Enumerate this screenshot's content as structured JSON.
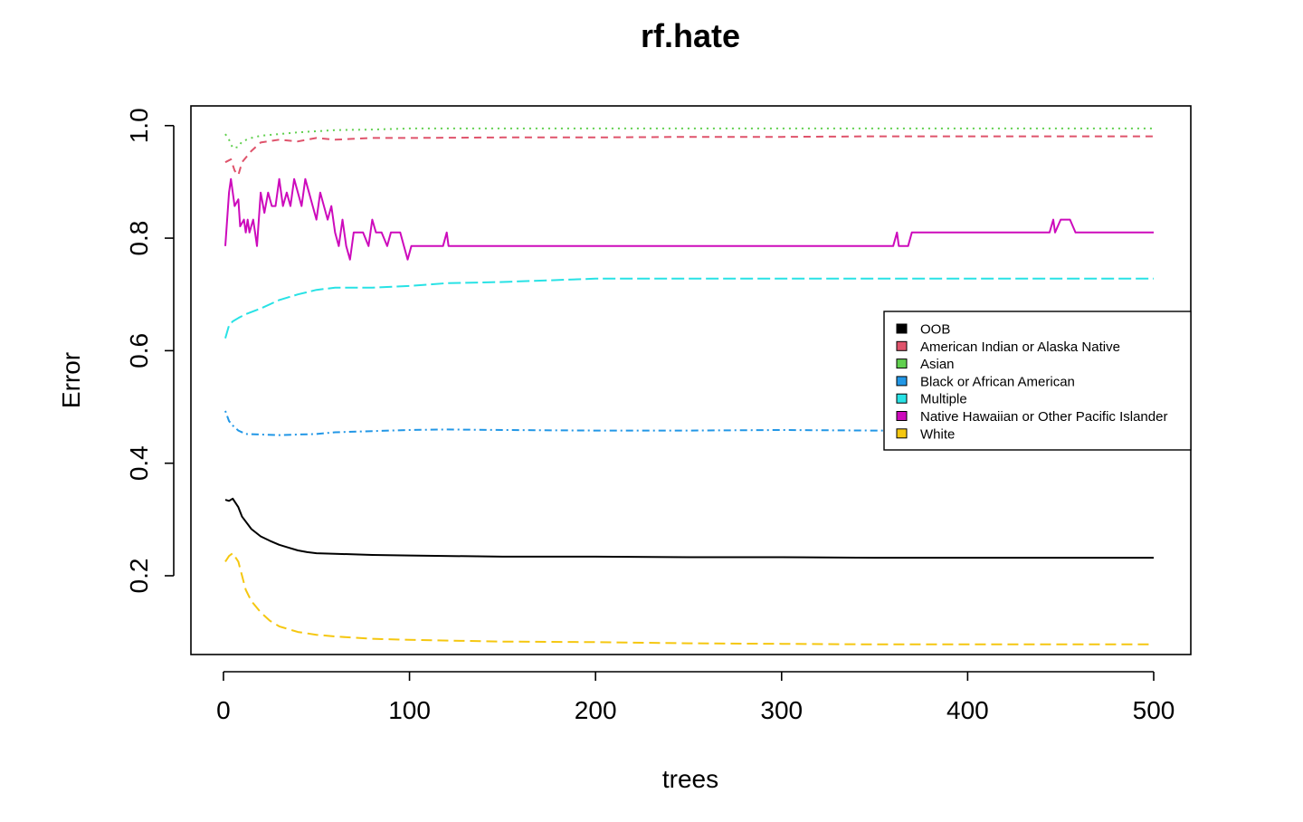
{
  "chart_data": {
    "type": "line",
    "title": "rf.hate",
    "xlabel": "trees",
    "ylabel": "Error",
    "xlim": [
      1,
      500
    ],
    "ylim": [
      0.06,
      1.035
    ],
    "x_ticks": [
      0,
      100,
      200,
      300,
      400,
      500
    ],
    "y_ticks": [
      0.2,
      0.4,
      0.6,
      0.8,
      1.0
    ],
    "x_tick_labels": [
      "0",
      "100",
      "200",
      "300",
      "400",
      "500"
    ],
    "y_tick_labels": [
      "0.2",
      "0.4",
      "0.6",
      "0.8",
      "1.0"
    ],
    "grid": false,
    "legend_position": "right",
    "series": [
      {
        "name": "OOB",
        "color": "#000000",
        "dash": "solid",
        "points": [
          [
            1,
            0.335
          ],
          [
            3,
            0.333
          ],
          [
            5,
            0.337
          ],
          [
            8,
            0.322
          ],
          [
            10,
            0.305
          ],
          [
            15,
            0.283
          ],
          [
            20,
            0.27
          ],
          [
            25,
            0.262
          ],
          [
            30,
            0.255
          ],
          [
            35,
            0.25
          ],
          [
            40,
            0.245
          ],
          [
            45,
            0.242
          ],
          [
            50,
            0.24
          ],
          [
            60,
            0.239
          ],
          [
            80,
            0.237
          ],
          [
            100,
            0.236
          ],
          [
            150,
            0.234
          ],
          [
            200,
            0.234
          ],
          [
            250,
            0.233
          ],
          [
            300,
            0.233
          ],
          [
            350,
            0.232
          ],
          [
            400,
            0.232
          ],
          [
            450,
            0.232
          ],
          [
            500,
            0.232
          ]
        ]
      },
      {
        "name": "American Indian or Alaska Native",
        "color": "#DF536B",
        "dash": "8,6",
        "points": [
          [
            1,
            0.935
          ],
          [
            4,
            0.94
          ],
          [
            6,
            0.92
          ],
          [
            8,
            0.912
          ],
          [
            10,
            0.935
          ],
          [
            15,
            0.955
          ],
          [
            20,
            0.97
          ],
          [
            30,
            0.975
          ],
          [
            40,
            0.972
          ],
          [
            50,
            0.978
          ],
          [
            60,
            0.975
          ],
          [
            80,
            0.978
          ],
          [
            100,
            0.978
          ],
          [
            150,
            0.979
          ],
          [
            200,
            0.979
          ],
          [
            250,
            0.98
          ],
          [
            300,
            0.98
          ],
          [
            350,
            0.981
          ],
          [
            400,
            0.981
          ],
          [
            450,
            0.981
          ],
          [
            500,
            0.981
          ]
        ]
      },
      {
        "name": "Asian",
        "color": "#61D04F",
        "dash": "2,5",
        "points": [
          [
            1,
            0.985
          ],
          [
            3,
            0.975
          ],
          [
            5,
            0.96
          ],
          [
            8,
            0.962
          ],
          [
            10,
            0.972
          ],
          [
            15,
            0.978
          ],
          [
            20,
            0.982
          ],
          [
            30,
            0.985
          ],
          [
            40,
            0.988
          ],
          [
            60,
            0.992
          ],
          [
            80,
            0.993
          ],
          [
            100,
            0.995
          ],
          [
            150,
            0.995
          ],
          [
            200,
            0.995
          ],
          [
            300,
            0.995
          ],
          [
            400,
            0.995
          ],
          [
            500,
            0.995
          ]
        ]
      },
      {
        "name": "Black or African American",
        "color": "#2297E6",
        "dash": "2,4,8,4",
        "points": [
          [
            1,
            0.493
          ],
          [
            3,
            0.475
          ],
          [
            5,
            0.467
          ],
          [
            8,
            0.458
          ],
          [
            12,
            0.452
          ],
          [
            20,
            0.451
          ],
          [
            30,
            0.45
          ],
          [
            40,
            0.451
          ],
          [
            50,
            0.452
          ],
          [
            60,
            0.455
          ],
          [
            80,
            0.457
          ],
          [
            100,
            0.459
          ],
          [
            120,
            0.46
          ],
          [
            150,
            0.459
          ],
          [
            200,
            0.458
          ],
          [
            250,
            0.458
          ],
          [
            300,
            0.459
          ],
          [
            350,
            0.458
          ],
          [
            400,
            0.458
          ],
          [
            450,
            0.458
          ],
          [
            500,
            0.458
          ]
        ]
      },
      {
        "name": "Multiple",
        "color": "#28E2E5",
        "dash": "14,5",
        "points": [
          [
            1,
            0.622
          ],
          [
            3,
            0.645
          ],
          [
            5,
            0.652
          ],
          [
            8,
            0.658
          ],
          [
            12,
            0.665
          ],
          [
            20,
            0.675
          ],
          [
            30,
            0.69
          ],
          [
            40,
            0.7
          ],
          [
            50,
            0.708
          ],
          [
            60,
            0.712
          ],
          [
            80,
            0.712
          ],
          [
            100,
            0.715
          ],
          [
            120,
            0.72
          ],
          [
            150,
            0.722
          ],
          [
            200,
            0.728
          ],
          [
            250,
            0.728
          ],
          [
            300,
            0.728
          ],
          [
            350,
            0.728
          ],
          [
            400,
            0.728
          ],
          [
            450,
            0.728
          ],
          [
            500,
            0.728
          ]
        ]
      },
      {
        "name": "Native Hawaiian or Other Pacific Islander",
        "color": "#CD0BBC",
        "dash": "solid",
        "points": [
          [
            1,
            0.786
          ],
          [
            3,
            0.881
          ],
          [
            4,
            0.905
          ],
          [
            6,
            0.857
          ],
          [
            8,
            0.869
          ],
          [
            9,
            0.821
          ],
          [
            11,
            0.833
          ],
          [
            12,
            0.81
          ],
          [
            13,
            0.833
          ],
          [
            14,
            0.81
          ],
          [
            16,
            0.833
          ],
          [
            17,
            0.81
          ],
          [
            18,
            0.786
          ],
          [
            20,
            0.881
          ],
          [
            22,
            0.845
          ],
          [
            24,
            0.881
          ],
          [
            26,
            0.857
          ],
          [
            28,
            0.857
          ],
          [
            30,
            0.905
          ],
          [
            32,
            0.857
          ],
          [
            34,
            0.881
          ],
          [
            36,
            0.857
          ],
          [
            38,
            0.905
          ],
          [
            40,
            0.881
          ],
          [
            42,
            0.857
          ],
          [
            44,
            0.905
          ],
          [
            46,
            0.881
          ],
          [
            48,
            0.857
          ],
          [
            50,
            0.833
          ],
          [
            52,
            0.881
          ],
          [
            54,
            0.857
          ],
          [
            56,
            0.833
          ],
          [
            58,
            0.857
          ],
          [
            60,
            0.81
          ],
          [
            62,
            0.786
          ],
          [
            64,
            0.833
          ],
          [
            66,
            0.786
          ],
          [
            68,
            0.762
          ],
          [
            70,
            0.81
          ],
          [
            75,
            0.81
          ],
          [
            78,
            0.786
          ],
          [
            80,
            0.833
          ],
          [
            82,
            0.81
          ],
          [
            85,
            0.81
          ],
          [
            88,
            0.786
          ],
          [
            90,
            0.81
          ],
          [
            95,
            0.81
          ],
          [
            97,
            0.786
          ],
          [
            99,
            0.762
          ],
          [
            101,
            0.786
          ],
          [
            118,
            0.786
          ],
          [
            120,
            0.81
          ],
          [
            121,
            0.786
          ],
          [
            200,
            0.786
          ],
          [
            300,
            0.786
          ],
          [
            360,
            0.786
          ],
          [
            362,
            0.81
          ],
          [
            363,
            0.786
          ],
          [
            368,
            0.786
          ],
          [
            370,
            0.81
          ],
          [
            400,
            0.81
          ],
          [
            444,
            0.81
          ],
          [
            446,
            0.833
          ],
          [
            447,
            0.81
          ],
          [
            450,
            0.833
          ],
          [
            455,
            0.833
          ],
          [
            458,
            0.81
          ],
          [
            500,
            0.81
          ]
        ]
      },
      {
        "name": "White",
        "color": "#F5C710",
        "dash": "12,6",
        "points": [
          [
            1,
            0.225
          ],
          [
            3,
            0.235
          ],
          [
            5,
            0.24
          ],
          [
            8,
            0.225
          ],
          [
            10,
            0.2
          ],
          [
            12,
            0.175
          ],
          [
            15,
            0.155
          ],
          [
            20,
            0.135
          ],
          [
            25,
            0.12
          ],
          [
            30,
            0.11
          ],
          [
            40,
            0.1
          ],
          [
            50,
            0.095
          ],
          [
            60,
            0.092
          ],
          [
            80,
            0.088
          ],
          [
            100,
            0.086
          ],
          [
            150,
            0.083
          ],
          [
            200,
            0.082
          ],
          [
            250,
            0.08
          ],
          [
            300,
            0.079
          ],
          [
            350,
            0.078
          ],
          [
            400,
            0.078
          ],
          [
            450,
            0.078
          ],
          [
            500,
            0.078
          ]
        ]
      }
    ]
  }
}
